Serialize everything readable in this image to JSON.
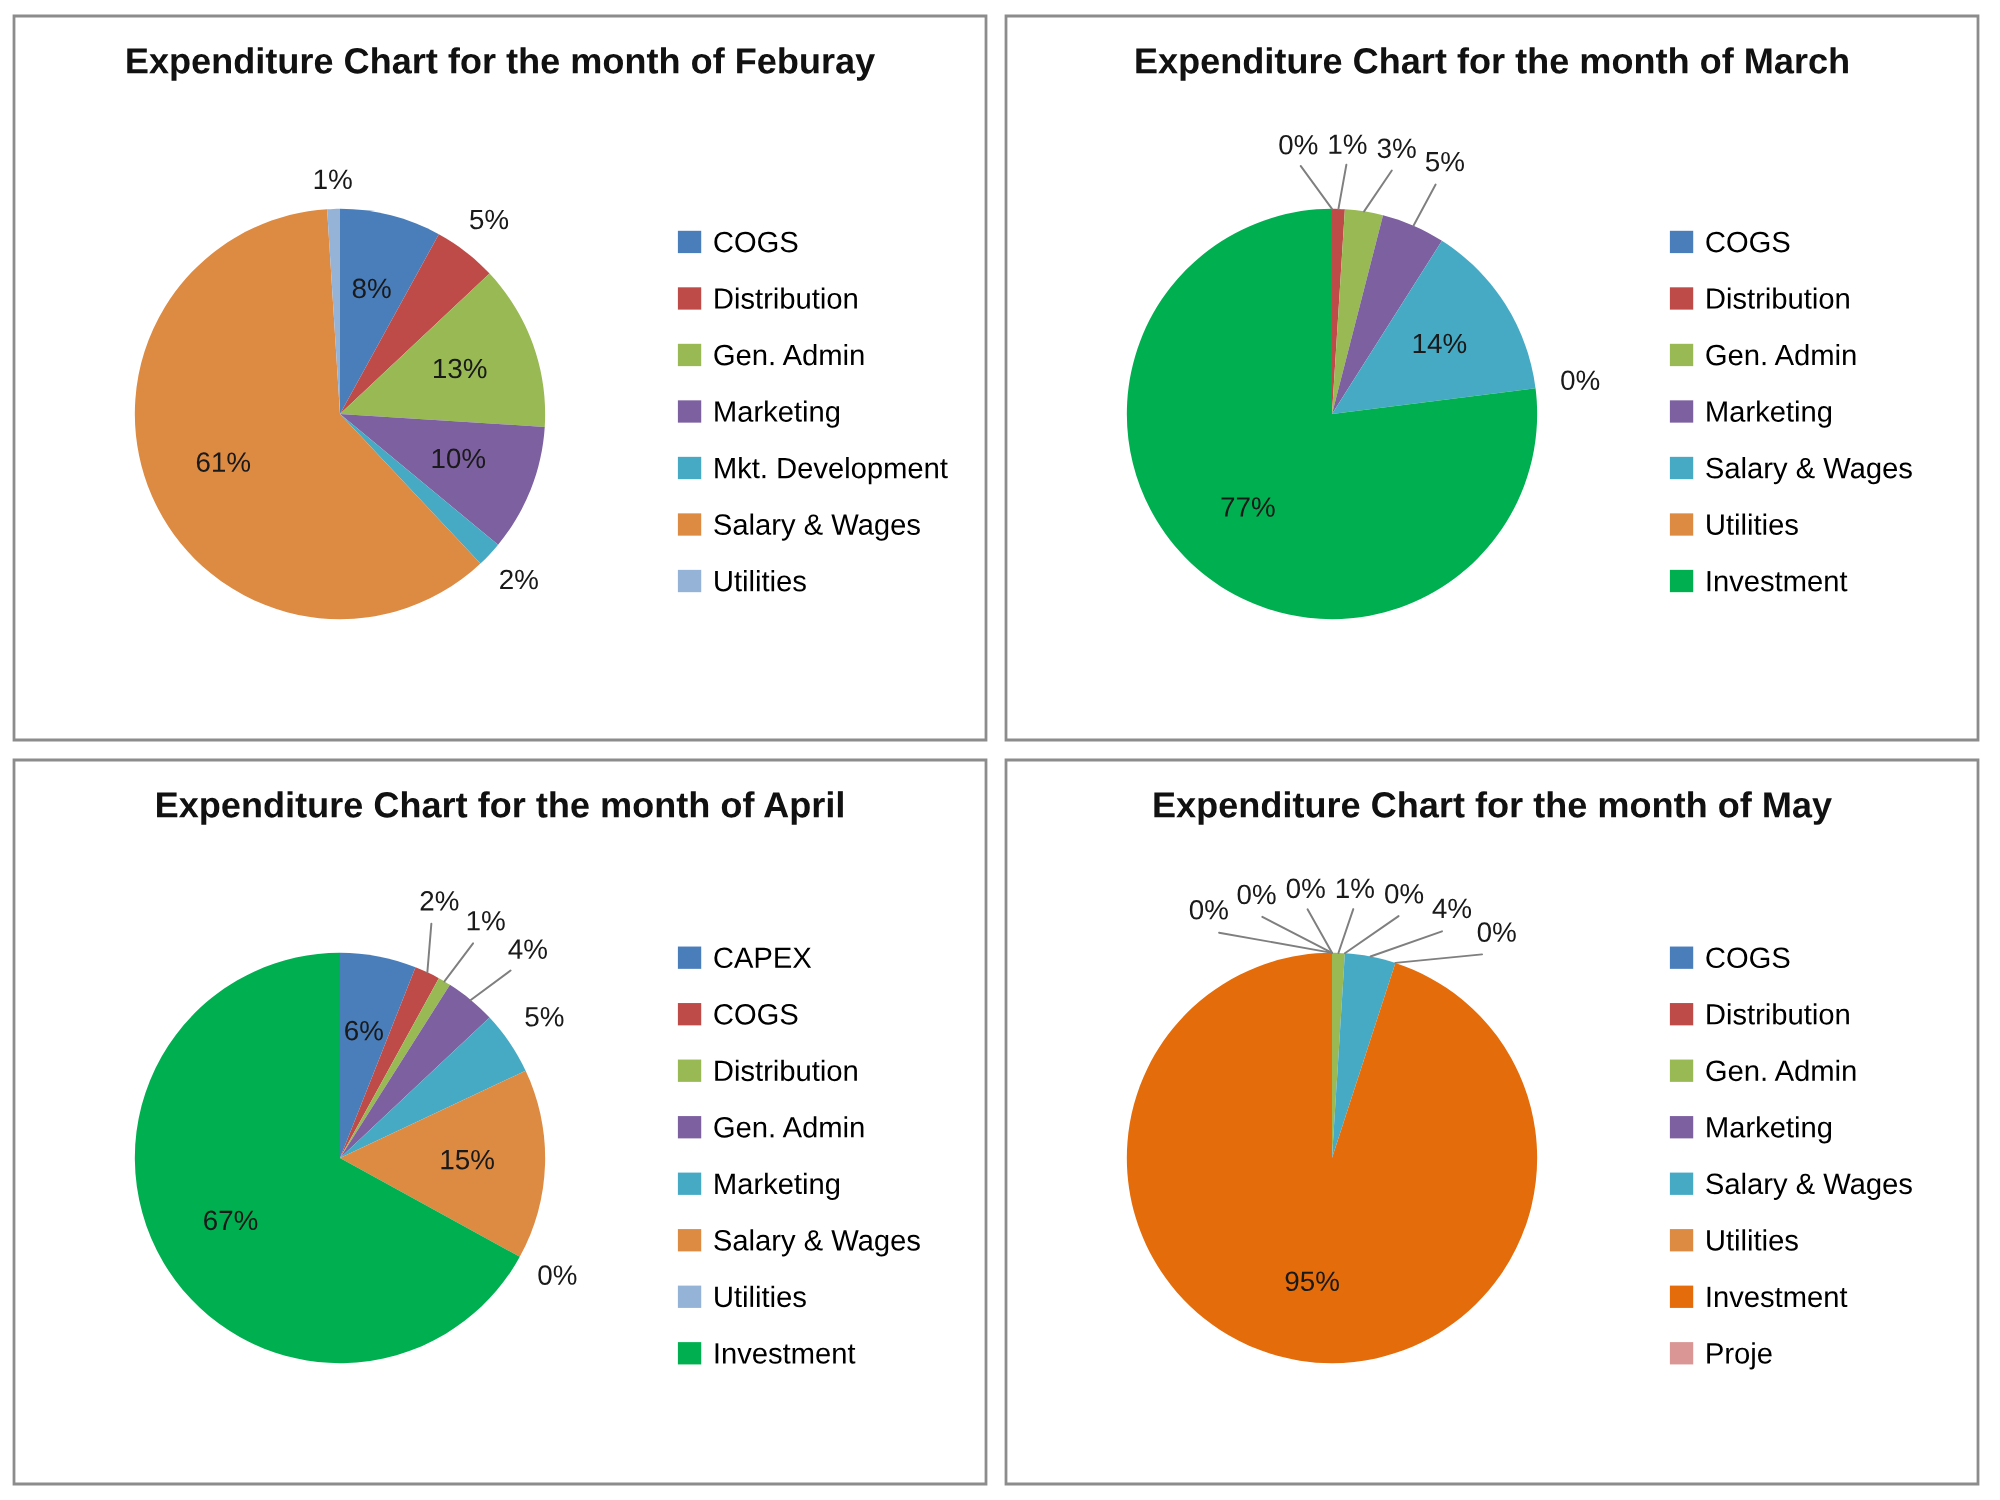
{
  "chart_data": [
    {
      "type": "pie",
      "title": "Expenditure Chart for the month of Feburay",
      "categories": [
        "COGS",
        "Distribution",
        "Gen. Admin",
        "Marketing",
        "Mkt. Development",
        "Salary & Wages",
        "Utilities"
      ],
      "values": [
        8,
        5,
        13,
        10,
        2,
        61,
        1
      ],
      "colors": [
        "#4a7ebb",
        "#be4b48",
        "#98b954",
        "#7d60a0",
        "#46aac5",
        "#dd8a43",
        "#95b3d7"
      ],
      "value_labels": [
        "8%",
        "5%",
        "13%",
        "10%",
        "2%",
        "61%",
        "1%"
      ],
      "legend": "right"
    },
    {
      "type": "pie",
      "title": "Expenditure Chart for the month of March",
      "categories": [
        "COGS",
        "Distribution",
        "Gen. Admin",
        "Marketing",
        "Salary & Wages",
        "Utilities",
        "Investment"
      ],
      "values": [
        0,
        1,
        3,
        5,
        14,
        0,
        77
      ],
      "colors": [
        "#4a7ebb",
        "#be4b48",
        "#98b954",
        "#7d60a0",
        "#46aac5",
        "#dd8a43",
        "#00b050"
      ],
      "value_labels": [
        "0%",
        "1%",
        "3%",
        "5%",
        "14%",
        "0%",
        "77%"
      ],
      "legend": "right"
    },
    {
      "type": "pie",
      "title": "Expenditure Chart for the month of April",
      "categories": [
        "CAPEX",
        "COGS",
        "Distribution",
        "Gen. Admin",
        "Marketing",
        "Salary & Wages",
        "Utilities",
        "Investment"
      ],
      "values": [
        6,
        2,
        1,
        4,
        5,
        15,
        0,
        67
      ],
      "colors": [
        "#4a7ebb",
        "#be4b48",
        "#98b954",
        "#7d60a0",
        "#46aac5",
        "#dd8a43",
        "#95b3d7",
        "#00b050"
      ],
      "value_labels": [
        "6%",
        "2%",
        "1%",
        "4%",
        "5%",
        "15%",
        "0%",
        "67%"
      ],
      "legend": "right"
    },
    {
      "type": "pie",
      "title": "Expenditure Chart for the month of May",
      "categories": [
        "COGS",
        "Distribution",
        "Gen. Admin",
        "Marketing",
        "Salary & Wages",
        "Utilities",
        "Investment",
        "Proje"
      ],
      "values": [
        0,
        0,
        1,
        0,
        4,
        0,
        95,
        0
      ],
      "colors": [
        "#4a7ebb",
        "#be4b48",
        "#98b954",
        "#7d60a0",
        "#46aac5",
        "#dd8a43",
        "#e46c0a",
        "#d99694"
      ],
      "value_labels": [
        "0%",
        "0%",
        "1%",
        "0%",
        "4%",
        "0%",
        "95%",
        "0%"
      ],
      "legend": "right"
    }
  ]
}
